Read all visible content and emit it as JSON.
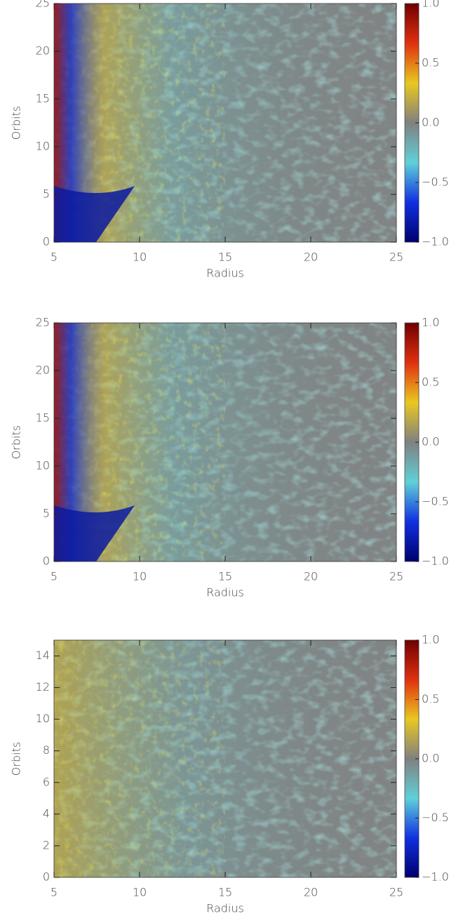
{
  "chart_data": [
    {
      "type": "heatmap",
      "xlabel": "Radius",
      "ylabel": "Orbits",
      "xlim": [
        5,
        25
      ],
      "ylim": [
        0,
        25
      ],
      "xticks": [
        5,
        10,
        15,
        20,
        25
      ],
      "yticks": [
        0,
        5,
        10,
        15,
        20,
        25
      ],
      "colorbar": {
        "lim": [
          -1,
          1
        ],
        "ticks": [
          {
            "value": 1,
            "label": "1.0"
          },
          {
            "value": 0.5,
            "label": "0.5"
          },
          {
            "value": 0,
            "label": "0.0"
          },
          {
            "value": -0.5,
            "label": "−0.5"
          },
          {
            "value": -1,
            "label": "−1.0"
          }
        ],
        "colors": [
          "#00006e",
          "#1030e0",
          "#60d0d8",
          "#808080",
          "#e8c820",
          "#e03010",
          "#700000"
        ]
      }
    },
    {
      "type": "heatmap",
      "xlabel": "Radius",
      "ylabel": "Orbits",
      "xlim": [
        5,
        25
      ],
      "ylim": [
        0,
        25
      ],
      "xticks": [
        5,
        10,
        15,
        20,
        25
      ],
      "yticks": [
        0,
        5,
        10,
        15,
        20,
        25
      ],
      "colorbar": {
        "lim": [
          -1,
          1
        ],
        "ticks": [
          {
            "value": 1,
            "label": "1.0"
          },
          {
            "value": 0.5,
            "label": "0.5"
          },
          {
            "value": 0,
            "label": "0.0"
          },
          {
            "value": -0.5,
            "label": "−0.5"
          },
          {
            "value": -1,
            "label": "−1.0"
          }
        ],
        "colors": [
          "#00006e",
          "#1030e0",
          "#60d0d8",
          "#808080",
          "#e8c820",
          "#e03010",
          "#700000"
        ]
      }
    },
    {
      "type": "heatmap",
      "xlabel": "Radius",
      "ylabel": "Orbits",
      "xlim": [
        5,
        25
      ],
      "ylim": [
        0,
        15
      ],
      "xticks": [
        5,
        10,
        15,
        20,
        25
      ],
      "yticks": [
        0,
        2,
        4,
        6,
        8,
        10,
        12,
        14
      ],
      "colorbar": {
        "lim": [
          -1,
          1
        ],
        "ticks": [
          {
            "value": 1,
            "label": "1.0"
          },
          {
            "value": 0.5,
            "label": "0.5"
          },
          {
            "value": 0,
            "label": "0.0"
          },
          {
            "value": -0.5,
            "label": "−0.5"
          },
          {
            "value": -1,
            "label": "−1.0"
          }
        ],
        "colors": [
          "#00006e",
          "#1030e0",
          "#60d0d8",
          "#808080",
          "#e8c820",
          "#e03010",
          "#700000"
        ]
      }
    }
  ]
}
